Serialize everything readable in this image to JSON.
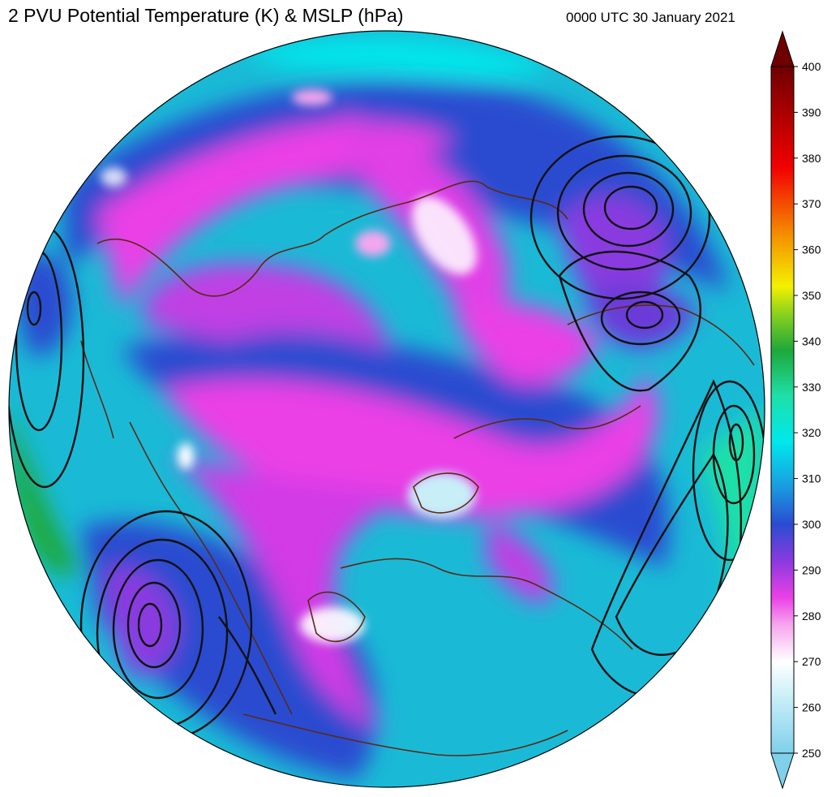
{
  "header": {
    "title": "2 PVU Potential Temperature (K) & MSLP (hPa)",
    "valid_time": "0000 UTC 30 January 2021"
  },
  "colorbar": {
    "min": 250,
    "max": 400,
    "extend": "both",
    "ticks": [
      "400",
      "390",
      "380",
      "370",
      "360",
      "350",
      "340",
      "330",
      "320",
      "310",
      "300",
      "290",
      "280",
      "270",
      "260",
      "250"
    ],
    "stops": [
      {
        "value": 250,
        "color": "#7fd0ea"
      },
      {
        "value": 262,
        "color": "#c8eef8"
      },
      {
        "value": 270,
        "color": "#ffffff"
      },
      {
        "value": 278,
        "color": "#f6a6ee"
      },
      {
        "value": 284,
        "color": "#ea40e6"
      },
      {
        "value": 292,
        "color": "#8a3ae0"
      },
      {
        "value": 300,
        "color": "#2a4cd0"
      },
      {
        "value": 308,
        "color": "#1a9ae0"
      },
      {
        "value": 318,
        "color": "#00e8ec"
      },
      {
        "value": 328,
        "color": "#1ee0a8"
      },
      {
        "value": 338,
        "color": "#1ea83a"
      },
      {
        "value": 346,
        "color": "#8ad21e"
      },
      {
        "value": 352,
        "color": "#f4f000"
      },
      {
        "value": 362,
        "color": "#f49a00"
      },
      {
        "value": 378,
        "color": "#f20000"
      },
      {
        "value": 400,
        "color": "#6e0000"
      }
    ],
    "under_color": "#7fd0ea",
    "over_color": "#6e0000"
  },
  "map": {
    "projection": "north-polar-orthographic",
    "background_color": "#1abad6",
    "coastline_color": "#5a2a14",
    "contour_color": "#111111"
  }
}
